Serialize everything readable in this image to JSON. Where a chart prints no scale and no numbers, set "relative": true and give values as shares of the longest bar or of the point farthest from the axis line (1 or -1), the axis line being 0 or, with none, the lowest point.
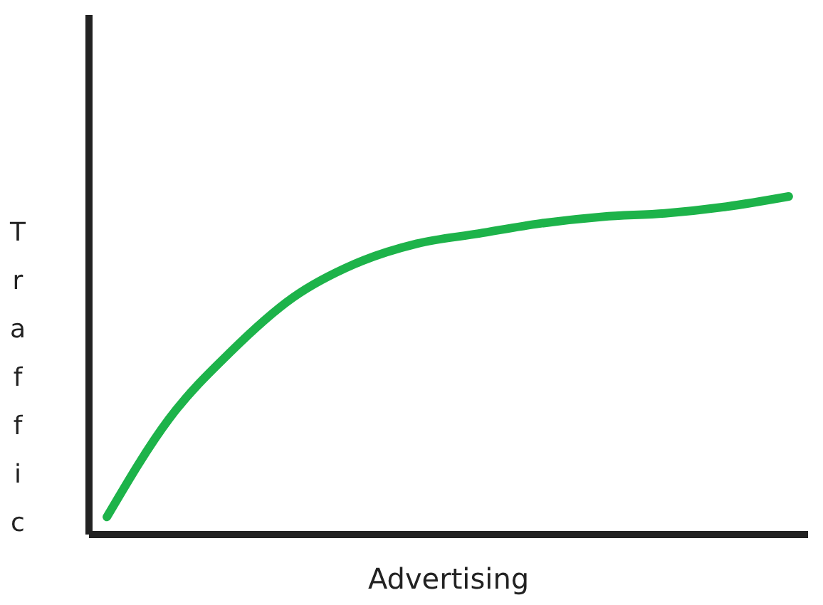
{
  "chart_data": {
    "type": "line",
    "xlabel": "Advertising",
    "ylabel": "Traffic",
    "relative": true,
    "grid": false,
    "categories": [
      null,
      null,
      null,
      null,
      null,
      null,
      null,
      null,
      null,
      null,
      null,
      null
    ],
    "series": [
      {
        "color": "#1db34a",
        "values": [
          0.05,
          0.34,
          0.54,
          0.7,
          0.8,
          0.86,
          0.89,
          0.92,
          0.94,
          0.95,
          0.97,
          1.0
        ]
      }
    ]
  }
}
